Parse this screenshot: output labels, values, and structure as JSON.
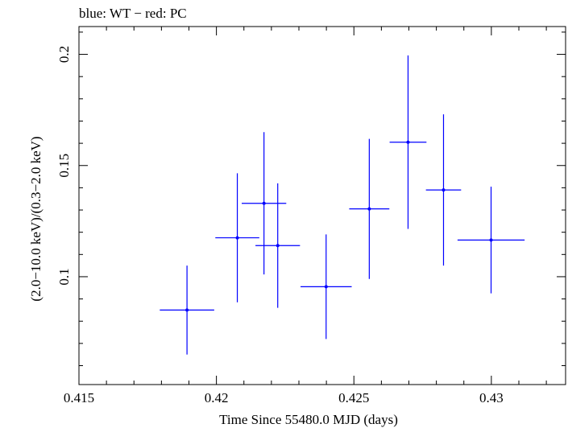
{
  "chart_data": {
    "type": "scatter",
    "title": "blue: WT − red: PC",
    "xlabel": "Time Since 55480.0 MJD (days)",
    "ylabel": "(2.0−10.0 keV)/(0.3−2.0 keV)",
    "xlim": [
      0.415,
      0.4327
    ],
    "ylim": [
      0.0515,
      0.2125
    ],
    "x_ticks": [
      0.415,
      0.42,
      0.425,
      0.43
    ],
    "x_tick_labels": [
      "0.415",
      "0.42",
      "0.425",
      "0.43"
    ],
    "y_ticks": [
      0.1,
      0.15,
      0.2
    ],
    "y_tick_labels": [
      "0.1",
      "0.15",
      "0.2"
    ],
    "grid": false,
    "series": [
      {
        "name": "WT",
        "color": "#0000ff",
        "points": [
          {
            "x": 0.42173,
            "xerr_lo": 0.00081,
            "xerr_hi": 0.00081,
            "y": 0.133,
            "yerr_lo": 0.032,
            "yerr_hi": 0.032
          },
          {
            "x": 0.41893,
            "xerr_lo": 0.00099,
            "xerr_hi": 0.00099,
            "y": 0.085,
            "yerr_lo": 0.02,
            "yerr_hi": 0.02
          },
          {
            "x": 0.42076,
            "xerr_lo": 0.0008,
            "xerr_hi": 0.0008,
            "y": 0.1175,
            "yerr_lo": 0.029,
            "yerr_hi": 0.029
          },
          {
            "x": 0.42223,
            "xerr_lo": 0.00081,
            "xerr_hi": 0.00081,
            "y": 0.114,
            "yerr_lo": 0.028,
            "yerr_hi": 0.028
          },
          {
            "x": 0.42399,
            "xerr_lo": 0.00093,
            "xerr_hi": 0.00093,
            "y": 0.0955,
            "yerr_lo": 0.0235,
            "yerr_hi": 0.0235
          },
          {
            "x": 0.42556,
            "xerr_lo": 0.00073,
            "xerr_hi": 0.00073,
            "y": 0.1305,
            "yerr_lo": 0.0315,
            "yerr_hi": 0.0315
          },
          {
            "x": 0.42697,
            "xerr_lo": 0.00067,
            "xerr_hi": 0.00067,
            "y": 0.1605,
            "yerr_lo": 0.039,
            "yerr_hi": 0.039
          },
          {
            "x": 0.42826,
            "xerr_lo": 0.00064,
            "xerr_hi": 0.00064,
            "y": 0.139,
            "yerr_lo": 0.034,
            "yerr_hi": 0.034
          },
          {
            "x": 0.42999,
            "xerr_lo": 0.00122,
            "xerr_hi": 0.00122,
            "y": 0.1165,
            "yerr_lo": 0.024,
            "yerr_hi": 0.024
          }
        ]
      }
    ]
  }
}
